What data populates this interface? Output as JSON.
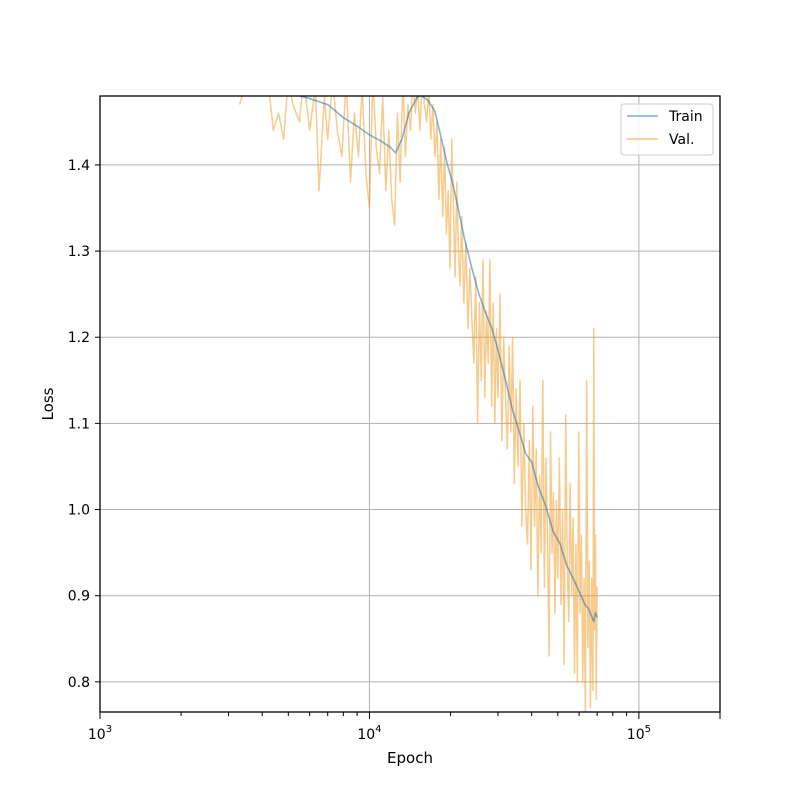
{
  "chart_data": {
    "type": "line",
    "title": "",
    "xlabel": "Epoch",
    "ylabel": "Loss",
    "xscale": "log",
    "xlim": [
      1000,
      200000
    ],
    "ylim": [
      0.765,
      1.48
    ],
    "grid": true,
    "legend_position": "top-right",
    "x_ticks": [
      {
        "value": 1000,
        "base": "10",
        "exp": "3"
      },
      {
        "value": 10000,
        "base": "10",
        "exp": "4"
      },
      {
        "value": 100000,
        "base": "10",
        "exp": "5"
      }
    ],
    "y_ticks": [
      {
        "value": 0.8,
        "label": "0.8"
      },
      {
        "value": 0.9,
        "label": "0.9"
      },
      {
        "value": 1.0,
        "label": "1.0"
      },
      {
        "value": 1.1,
        "label": "1.1"
      },
      {
        "value": 1.2,
        "label": "1.2"
      },
      {
        "value": 1.3,
        "label": "1.3"
      },
      {
        "value": 1.4,
        "label": "1.4"
      }
    ],
    "series": [
      {
        "name": "Train",
        "color": "#1f77b4",
        "points": [
          [
            5500,
            1.48
          ],
          [
            6000,
            1.477
          ],
          [
            7000,
            1.47
          ],
          [
            8000,
            1.455
          ],
          [
            9000,
            1.445
          ],
          [
            10000,
            1.435
          ],
          [
            11000,
            1.428
          ],
          [
            12000,
            1.42
          ],
          [
            12500,
            1.414
          ],
          [
            13200,
            1.43
          ],
          [
            14000,
            1.46
          ],
          [
            15000,
            1.478
          ],
          [
            15500,
            1.481
          ],
          [
            16500,
            1.475
          ],
          [
            17500,
            1.462
          ],
          [
            18500,
            1.43
          ],
          [
            19500,
            1.4
          ],
          [
            20500,
            1.375
          ],
          [
            21500,
            1.345
          ],
          [
            22500,
            1.315
          ],
          [
            24000,
            1.28
          ],
          [
            25500,
            1.25
          ],
          [
            27000,
            1.228
          ],
          [
            28500,
            1.21
          ],
          [
            30000,
            1.185
          ],
          [
            32000,
            1.15
          ],
          [
            34000,
            1.115
          ],
          [
            36000,
            1.09
          ],
          [
            38000,
            1.065
          ],
          [
            40000,
            1.055
          ],
          [
            42000,
            1.03
          ],
          [
            45000,
            1.005
          ],
          [
            48000,
            0.975
          ],
          [
            51000,
            0.96
          ],
          [
            54000,
            0.935
          ],
          [
            57000,
            0.92
          ],
          [
            60000,
            0.905
          ],
          [
            63000,
            0.89
          ],
          [
            65000,
            0.885
          ],
          [
            67000,
            0.875
          ],
          [
            68000,
            0.87
          ],
          [
            69000,
            0.88
          ],
          [
            70000,
            0.875
          ]
        ]
      },
      {
        "name": "Val.",
        "color": "#f0a030",
        "points": [
          [
            3300,
            1.47
          ],
          [
            3500,
            1.5
          ],
          [
            3900,
            1.49
          ],
          [
            4200,
            1.5
          ],
          [
            4400,
            1.44
          ],
          [
            4600,
            1.46
          ],
          [
            4800,
            1.43
          ],
          [
            5000,
            1.5
          ],
          [
            5200,
            1.47
          ],
          [
            5500,
            1.45
          ],
          [
            5700,
            1.5
          ],
          [
            6000,
            1.44
          ],
          [
            6300,
            1.49
          ],
          [
            6500,
            1.37
          ],
          [
            6800,
            1.48
          ],
          [
            7000,
            1.43
          ],
          [
            7300,
            1.5
          ],
          [
            7600,
            1.44
          ],
          [
            7900,
            1.41
          ],
          [
            8200,
            1.5
          ],
          [
            8500,
            1.38
          ],
          [
            8800,
            1.46
          ],
          [
            9100,
            1.41
          ],
          [
            9400,
            1.49
          ],
          [
            9700,
            1.39
          ],
          [
            10000,
            1.35
          ],
          [
            10300,
            1.5
          ],
          [
            10600,
            1.42
          ],
          [
            10900,
            1.39
          ],
          [
            11200,
            1.48
          ],
          [
            11500,
            1.37
          ],
          [
            11800,
            1.44
          ],
          [
            12100,
            1.36
          ],
          [
            12400,
            1.33
          ],
          [
            12700,
            1.46
          ],
          [
            13000,
            1.38
          ],
          [
            13300,
            1.5
          ],
          [
            13600,
            1.41
          ],
          [
            13900,
            1.47
          ],
          [
            14200,
            1.44
          ],
          [
            14500,
            1.5
          ],
          [
            14800,
            1.46
          ],
          [
            15100,
            1.49
          ],
          [
            15400,
            1.44
          ],
          [
            15700,
            1.5
          ],
          [
            16000,
            1.47
          ],
          [
            16300,
            1.45
          ],
          [
            16600,
            1.49
          ],
          [
            16900,
            1.43
          ],
          [
            17200,
            1.47
          ],
          [
            17500,
            1.41
          ],
          [
            17800,
            1.45
          ],
          [
            18100,
            1.36
          ],
          [
            18400,
            1.43
          ],
          [
            18700,
            1.34
          ],
          [
            19000,
            1.42
          ],
          [
            19300,
            1.32
          ],
          [
            19600,
            1.37
          ],
          [
            19900,
            1.28
          ],
          [
            20200,
            1.43
          ],
          [
            20500,
            1.35
          ],
          [
            20800,
            1.27
          ],
          [
            21100,
            1.38
          ],
          [
            21400,
            1.3
          ],
          [
            21700,
            1.26
          ],
          [
            22000,
            1.34
          ],
          [
            22400,
            1.24
          ],
          [
            22800,
            1.31
          ],
          [
            23200,
            1.21
          ],
          [
            23600,
            1.28
          ],
          [
            24000,
            1.22
          ],
          [
            24400,
            1.17
          ],
          [
            24800,
            1.27
          ],
          [
            25200,
            1.1
          ],
          [
            25600,
            1.24
          ],
          [
            26000,
            1.15
          ],
          [
            26400,
            1.29
          ],
          [
            26800,
            1.13
          ],
          [
            27200,
            1.23
          ],
          [
            27600,
            1.17
          ],
          [
            28000,
            1.29
          ],
          [
            28400,
            1.12
          ],
          [
            28800,
            1.24
          ],
          [
            29200,
            1.1
          ],
          [
            29600,
            1.21
          ],
          [
            30000,
            1.13
          ],
          [
            30500,
            1.25
          ],
          [
            31000,
            1.08
          ],
          [
            31500,
            1.2
          ],
          [
            32000,
            1.13
          ],
          [
            32500,
            1.07
          ],
          [
            33000,
            1.19
          ],
          [
            33500,
            1.09
          ],
          [
            34000,
            1.2
          ],
          [
            34500,
            1.03
          ],
          [
            35000,
            1.14
          ],
          [
            35600,
            1.05
          ],
          [
            36200,
            1.15
          ],
          [
            36800,
            0.98
          ],
          [
            37400,
            1.1
          ],
          [
            38000,
            1.0
          ],
          [
            38600,
            0.96
          ],
          [
            39200,
            1.08
          ],
          [
            39800,
            0.93
          ],
          [
            40400,
            1.12
          ],
          [
            41000,
            0.98
          ],
          [
            41600,
            1.07
          ],
          [
            42200,
            0.9
          ],
          [
            42800,
            1.04
          ],
          [
            43400,
            0.95
          ],
          [
            44000,
            1.15
          ],
          [
            44600,
            0.91
          ],
          [
            45200,
            1.06
          ],
          [
            45800,
            0.97
          ],
          [
            46400,
            0.83
          ],
          [
            47000,
            1.09
          ],
          [
            47600,
            0.95
          ],
          [
            48200,
            1.02
          ],
          [
            48800,
            0.88
          ],
          [
            49400,
            1.01
          ],
          [
            50000,
            0.92
          ],
          [
            50700,
            1.06
          ],
          [
            51400,
            0.89
          ],
          [
            52100,
            1.0
          ],
          [
            52800,
            0.82
          ],
          [
            53500,
            1.11
          ],
          [
            54200,
            0.94
          ],
          [
            54900,
            0.87
          ],
          [
            55600,
            1.03
          ],
          [
            56300,
            0.9
          ],
          [
            57000,
            0.99
          ],
          [
            57700,
            0.81
          ],
          [
            58400,
            0.96
          ],
          [
            59100,
            0.8
          ],
          [
            59800,
            1.09
          ],
          [
            60500,
            0.88
          ],
          [
            61200,
            0.97
          ],
          [
            61900,
            0.8
          ],
          [
            62600,
            0.92
          ],
          [
            63300,
            0.76
          ],
          [
            64000,
            1.15
          ],
          [
            64700,
            0.84
          ],
          [
            65400,
            0.94
          ],
          [
            66100,
            0.77
          ],
          [
            66800,
            0.92
          ],
          [
            67500,
            0.79
          ],
          [
            68000,
            1.21
          ],
          [
            68500,
            0.86
          ],
          [
            69000,
            0.97
          ],
          [
            69500,
            0.78
          ],
          [
            70000,
            0.91
          ]
        ]
      }
    ]
  }
}
